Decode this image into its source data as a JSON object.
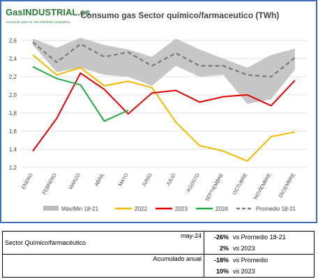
{
  "logo": {
    "brand": "GasINDUSTRIAL.es",
    "tagline": "Asociación para un Gas Industrial Competitivo"
  },
  "chart_data": {
    "type": "line",
    "title": "Consumo gas Sector químico/farmaceutico (TWh)",
    "categories": [
      "ENERO",
      "FEBRERO",
      "MARZO",
      "ABRIL",
      "MAYO",
      "JUNIO",
      "JULIO",
      "AGOSTO",
      "SEPTIEMBRE",
      "OCTUBRE",
      "NOVIEMBRE",
      "DICIEMBRE"
    ],
    "ylim": [
      1.2,
      2.7
    ],
    "yticks": [
      {
        "value": 1.2,
        "label": "1,2"
      },
      {
        "value": 1.4,
        "label": "1,4"
      },
      {
        "value": 1.6,
        "label": "1,6"
      },
      {
        "value": 1.8,
        "label": "1,8"
      },
      {
        "value": 2.0,
        "label": "2,0"
      },
      {
        "value": 2.2,
        "label": "2,2"
      },
      {
        "value": 2.4,
        "label": "2,4"
      },
      {
        "value": 2.6,
        "label": "2,6"
      }
    ],
    "grid": true,
    "band": {
      "name": "Máx/Min 18-21",
      "color": "#bdbdbd",
      "max": [
        2.62,
        2.52,
        2.63,
        2.55,
        2.5,
        2.42,
        2.62,
        2.5,
        2.4,
        2.3,
        2.44,
        2.51
      ],
      "min": [
        2.55,
        2.25,
        2.3,
        2.22,
        2.2,
        2.1,
        2.32,
        2.2,
        2.22,
        1.9,
        1.95,
        2.28
      ]
    },
    "series": [
      {
        "name": "2022",
        "color": "#f5b800",
        "values": [
          2.44,
          2.22,
          2.3,
          2.1,
          2.15,
          2.08,
          1.7,
          1.44,
          1.38,
          1.27,
          1.54,
          1.59
        ]
      },
      {
        "name": "2023",
        "color": "#e00000",
        "values": [
          1.38,
          1.74,
          2.24,
          2.06,
          1.79,
          2.02,
          2.05,
          1.92,
          1.98,
          2.0,
          1.88,
          2.16
        ]
      },
      {
        "name": "2024",
        "color": "#22aa44",
        "values": [
          2.31,
          2.18,
          2.11,
          1.71,
          1.83,
          null,
          null,
          null,
          null,
          null,
          null,
          null
        ]
      },
      {
        "name": "Promedio 18-21",
        "color": "#808080",
        "dashed": true,
        "values": [
          2.58,
          2.36,
          2.56,
          2.42,
          2.47,
          2.32,
          2.46,
          2.32,
          2.32,
          2.22,
          2.2,
          2.41
        ]
      }
    ]
  },
  "table": {
    "label": "Sector Químico/farmacéutico",
    "groups": [
      {
        "period": "may-24",
        "rows": [
          {
            "value": "-26%",
            "text": "vs Promedio 18-21"
          },
          {
            "value": "2%",
            "text": "vs 2023"
          }
        ]
      },
      {
        "period": "Acumulado anual",
        "rows": [
          {
            "value": "-18%",
            "text": "vs Promedio"
          },
          {
            "value": "10%",
            "text": "vs 2023"
          }
        ]
      }
    ]
  }
}
